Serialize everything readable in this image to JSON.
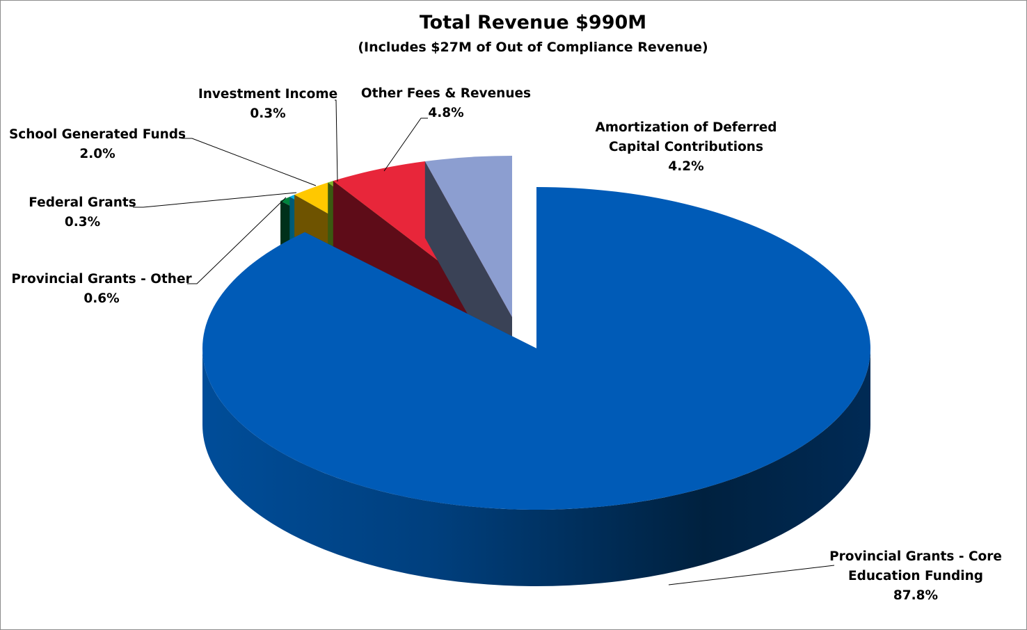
{
  "chart_data": {
    "type": "pie",
    "style": "3d-exploded",
    "title": "Total Revenue $990M",
    "subtitle": "(Includes $27M of Out of Compliance Revenue)",
    "slices": [
      {
        "name": "Provincial Grants - Core Education Funding",
        "value": 87.8,
        "label_pct": "87.8%",
        "color": "#005BB7",
        "side": "#003a75"
      },
      {
        "name": "Provincial Grants - Other",
        "value": 0.6,
        "label_pct": "0.6%",
        "color": "#00843D",
        "side": "#00301a"
      },
      {
        "name": "Federal Grants",
        "value": 0.3,
        "label_pct": "0.3%",
        "color": "#00B0E6",
        "side": "#005a75"
      },
      {
        "name": "School Generated Funds",
        "value": 2.0,
        "label_pct": "2.0%",
        "color": "#FFC800",
        "side": "#6e5300"
      },
      {
        "name": "Investment Income",
        "value": 0.3,
        "label_pct": "0.3%",
        "color": "#7DB82A",
        "side": "#3a5a10"
      },
      {
        "name": "Other Fees & Revenues",
        "value": 4.8,
        "label_pct": "4.8%",
        "color": "#E8263A",
        "side": "#5e0c18"
      },
      {
        "name": "Amortization of Deferred Capital Contributions",
        "value": 4.2,
        "label_pct": "4.2%",
        "color": "#8C9ED0",
        "side": "#3a4256"
      }
    ],
    "legend": "none"
  }
}
